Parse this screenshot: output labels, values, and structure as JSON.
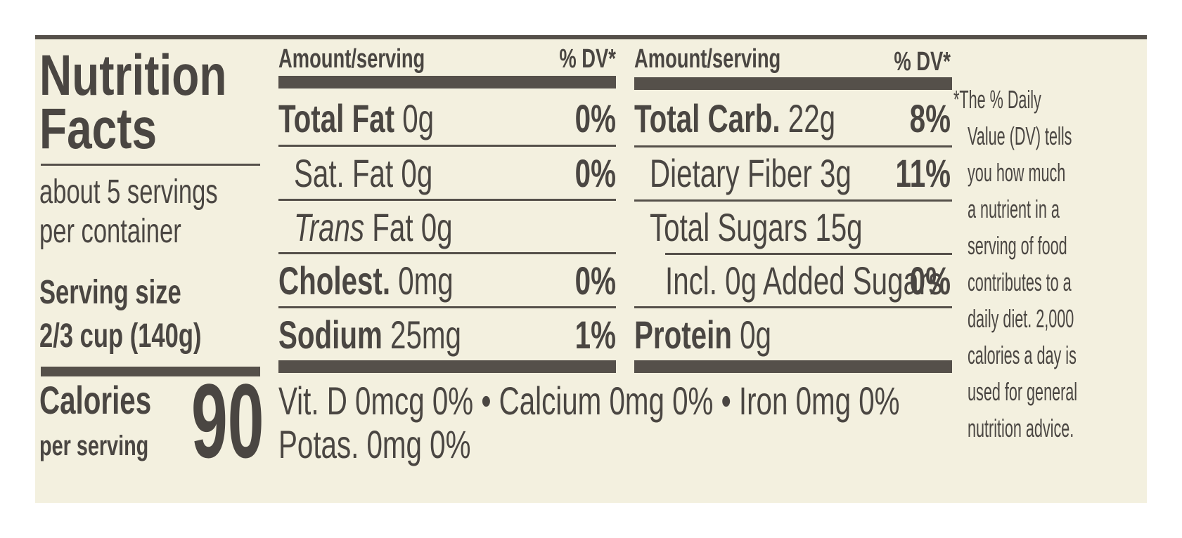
{
  "title": {
    "line1": "Nutrition",
    "line2": "Facts"
  },
  "servings": {
    "line1": "about 5 servings",
    "line2": "per container"
  },
  "serving_size": {
    "label": "Serving size",
    "value": "2/3 cup (140g)"
  },
  "calories": {
    "label": "Calories",
    "sublabel": "per serving",
    "value": "90"
  },
  "headers": {
    "amount": "Amount/serving",
    "dv": "% DV*"
  },
  "left_col": {
    "total_fat": {
      "name": "Total Fat",
      "amount": "0g",
      "dv": "0%"
    },
    "sat_fat": {
      "name": "Sat. Fat",
      "amount": "0g",
      "dv": "0%"
    },
    "trans_fat": {
      "name": "Trans",
      "rest": "Fat 0g"
    },
    "cholest": {
      "name": "Cholest.",
      "amount": "0mg",
      "dv": "0%"
    },
    "sodium": {
      "name": "Sodium",
      "amount": "25mg",
      "dv": "1%"
    }
  },
  "right_col": {
    "total_carb": {
      "name": "Total Carb.",
      "amount": "22g",
      "dv": "8%"
    },
    "fiber": {
      "name": "Dietary Fiber",
      "amount": "3g",
      "dv": "11%"
    },
    "sugars": {
      "name": "Total Sugars",
      "amount": "15g"
    },
    "added_sugars": {
      "name": "Incl. 0g Added Sugars",
      "dv": "0%"
    },
    "protein": {
      "name": "Protein",
      "amount": "0g"
    }
  },
  "vitamins": {
    "line1": "Vit. D 0mcg 0% • Calcium 0mg 0% • Iron 0mg 0%",
    "line2": "Potas. 0mg 0%"
  },
  "footnote": [
    "*The % Daily",
    "Value (DV) tells",
    "you how much",
    "a nutrient in a",
    "serving of food",
    "contributes to a",
    "daily diet. 2,000",
    "calories a day is",
    "used for general",
    "nutrition advice."
  ],
  "colors": {
    "panel": "#f3f0df",
    "ink": "#4a4642",
    "rule": "#55504a"
  }
}
